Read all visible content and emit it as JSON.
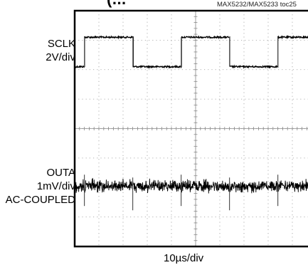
{
  "title_fragment": "(...",
  "reference": "MAX5232/MAX5233 toc25",
  "channels": [
    {
      "name": "SCLK",
      "scale": "2V/div",
      "coupling": ""
    },
    {
      "name": "OUTA",
      "scale": "1mV/div",
      "coupling": "AC-COUPLED"
    }
  ],
  "timebase": "10µs/div",
  "chart_data": {
    "type": "line",
    "grid": true,
    "divisions": {
      "x": 10,
      "y": 8
    },
    "series": [
      {
        "name": "SCLK",
        "kind": "square",
        "period_div": 4.0,
        "first_rising_edge_div": 0.4,
        "duty": 0.5,
        "low_level_div": 6.1,
        "high_level_div": 7.1
      },
      {
        "name": "OUTA",
        "kind": "noise",
        "baseline_div": 2.05,
        "noise_pp_div": 0.35,
        "glitch_at_edges": true
      }
    ]
  }
}
